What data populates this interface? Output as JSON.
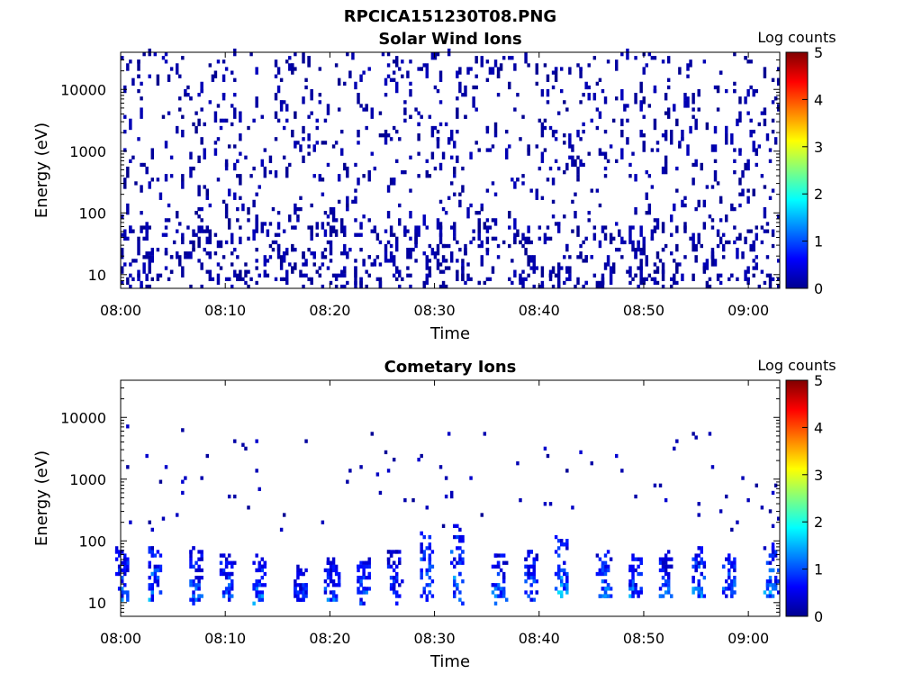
{
  "figure_title": "RPCICA151230T08.PNG",
  "chart_data": [
    {
      "type": "heatmap",
      "title": "Solar Wind Ions",
      "xlabel": "Time",
      "ylabel": "Energy (eV)",
      "x_ticks": [
        "08:00",
        "08:10",
        "08:20",
        "08:30",
        "08:40",
        "08:50",
        "09:00"
      ],
      "y_ticks": [
        "10",
        "100",
        "1000",
        "10000"
      ],
      "y_scale": "log",
      "ylim": [
        6,
        40000
      ],
      "xlim": [
        "08:00",
        "09:03"
      ],
      "colorbar": {
        "label": "Log counts",
        "ticks": [
          "0",
          "1",
          "2",
          "3",
          "4",
          "5"
        ],
        "range": [
          0,
          5
        ]
      },
      "distribution": "sparse scattered counts (~0-0.3 log counts) across all times from ~7 eV to ~30000 eV",
      "hotspots": []
    },
    {
      "type": "heatmap",
      "title": "Cometary Ions",
      "xlabel": "Time",
      "ylabel": "Energy (eV)",
      "x_ticks": [
        "08:00",
        "08:10",
        "08:20",
        "08:30",
        "08:40",
        "08:50",
        "09:00"
      ],
      "y_ticks": [
        "10",
        "100",
        "1000",
        "10000"
      ],
      "y_scale": "log",
      "ylim": [
        6,
        40000
      ],
      "xlim": [
        "08:00",
        "09:03"
      ],
      "colorbar": {
        "label": "Log counts",
        "ticks": [
          "0",
          "1",
          "2",
          "3",
          "4",
          "5"
        ],
        "range": [
          0,
          5
        ]
      },
      "distribution": "periodic bursts roughly every 3.3 minutes concentrated at 10-80 eV, peak ~1.8 log counts, sparse counts up to ~7000 eV",
      "hotspots": [
        {
          "time": "08:00",
          "e_min": 10,
          "e_max": 80,
          "level": 1.5
        },
        {
          "time": "08:03",
          "e_min": 10,
          "e_max": 80,
          "level": 1.7
        },
        {
          "time": "08:07",
          "e_min": 10,
          "e_max": 80,
          "level": 1.4
        },
        {
          "time": "08:10",
          "e_min": 10,
          "e_max": 60,
          "level": 1.5
        },
        {
          "time": "08:13",
          "e_min": 10,
          "e_max": 60,
          "level": 1.6
        },
        {
          "time": "08:17",
          "e_min": 10,
          "e_max": 40,
          "level": 1.2
        },
        {
          "time": "08:20",
          "e_min": 10,
          "e_max": 50,
          "level": 1.5
        },
        {
          "time": "08:23",
          "e_min": 10,
          "e_max": 50,
          "level": 1.5
        },
        {
          "time": "08:26",
          "e_min": 10,
          "e_max": 70,
          "level": 1.3
        },
        {
          "time": "08:29",
          "e_min": 10,
          "e_max": 150,
          "level": 1.6
        },
        {
          "time": "08:32",
          "e_min": 10,
          "e_max": 200,
          "level": 1.8
        },
        {
          "time": "08:36",
          "e_min": 10,
          "e_max": 60,
          "level": 1.5
        },
        {
          "time": "08:39",
          "e_min": 10,
          "e_max": 70,
          "level": 1.6
        },
        {
          "time": "08:42",
          "e_min": 12,
          "e_max": 120,
          "level": 1.8
        },
        {
          "time": "08:46",
          "e_min": 12,
          "e_max": 80,
          "level": 1.5
        },
        {
          "time": "08:49",
          "e_min": 12,
          "e_max": 60,
          "level": 1.6
        },
        {
          "time": "08:52",
          "e_min": 12,
          "e_max": 70,
          "level": 1.4
        },
        {
          "time": "08:55",
          "e_min": 12,
          "e_max": 80,
          "level": 1.7
        },
        {
          "time": "08:58",
          "e_min": 12,
          "e_max": 60,
          "level": 1.5
        },
        {
          "time": "09:02",
          "e_min": 12,
          "e_max": 100,
          "level": 1.7
        }
      ]
    }
  ]
}
